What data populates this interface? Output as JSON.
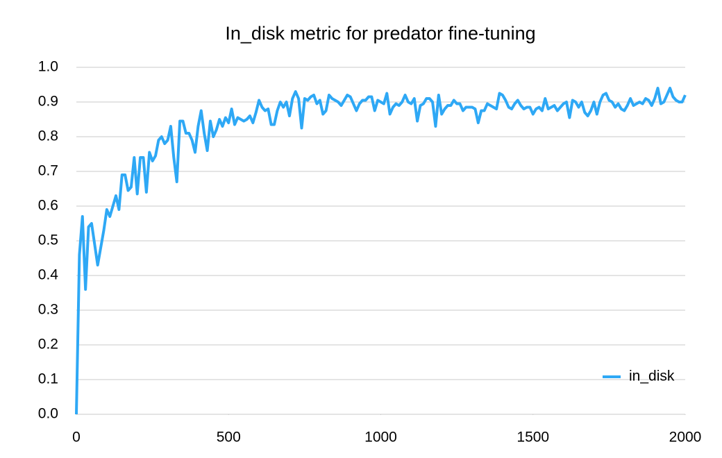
{
  "chart_data": {
    "type": "line",
    "title": "In_disk metric for predator fine-tuning",
    "x": [
      0,
      10,
      20,
      30,
      40,
      50,
      60,
      70,
      80,
      90,
      100,
      110,
      120,
      130,
      140,
      150,
      160,
      170,
      180,
      190,
      200,
      210,
      220,
      230,
      240,
      250,
      260,
      270,
      280,
      290,
      300,
      310,
      320,
      330,
      340,
      350,
      360,
      370,
      380,
      390,
      400,
      410,
      420,
      430,
      440,
      450,
      460,
      470,
      480,
      490,
      500,
      510,
      520,
      530,
      540,
      550,
      560,
      570,
      580,
      590,
      600,
      610,
      620,
      630,
      640,
      650,
      660,
      670,
      680,
      690,
      700,
      710,
      720,
      730,
      740,
      750,
      760,
      770,
      780,
      790,
      800,
      810,
      820,
      830,
      840,
      850,
      860,
      870,
      880,
      890,
      900,
      910,
      920,
      930,
      940,
      950,
      960,
      970,
      980,
      990,
      1000,
      1010,
      1020,
      1030,
      1040,
      1050,
      1060,
      1070,
      1080,
      1090,
      1100,
      1110,
      1120,
      1130,
      1140,
      1150,
      1160,
      1170,
      1180,
      1190,
      1200,
      1210,
      1220,
      1230,
      1240,
      1250,
      1260,
      1270,
      1280,
      1290,
      1300,
      1310,
      1320,
      1330,
      1340,
      1350,
      1360,
      1370,
      1380,
      1390,
      1400,
      1410,
      1420,
      1430,
      1440,
      1450,
      1460,
      1470,
      1480,
      1490,
      1500,
      1510,
      1520,
      1530,
      1540,
      1550,
      1560,
      1570,
      1580,
      1590,
      1600,
      1610,
      1620,
      1630,
      1640,
      1650,
      1660,
      1670,
      1680,
      1690,
      1700,
      1710,
      1720,
      1730,
      1740,
      1750,
      1760,
      1770,
      1780,
      1790,
      1800,
      1810,
      1820,
      1830,
      1840,
      1850,
      1860,
      1870,
      1880,
      1890,
      1900,
      1910,
      1920,
      1930,
      1940,
      1950,
      1960,
      1970,
      1980,
      1990,
      2000
    ],
    "series": [
      {
        "name": "in_disk",
        "color": "#2ea8f5",
        "values": [
          0.0,
          0.46,
          0.57,
          0.36,
          0.54,
          0.55,
          0.49,
          0.43,
          0.48,
          0.53,
          0.59,
          0.57,
          0.6,
          0.63,
          0.59,
          0.69,
          0.69,
          0.645,
          0.655,
          0.74,
          0.635,
          0.74,
          0.74,
          0.64,
          0.755,
          0.73,
          0.745,
          0.79,
          0.8,
          0.78,
          0.79,
          0.83,
          0.74,
          0.67,
          0.845,
          0.845,
          0.81,
          0.81,
          0.79,
          0.755,
          0.83,
          0.875,
          0.81,
          0.76,
          0.845,
          0.8,
          0.82,
          0.85,
          0.83,
          0.855,
          0.84,
          0.88,
          0.835,
          0.855,
          0.85,
          0.845,
          0.85,
          0.86,
          0.84,
          0.87,
          0.905,
          0.885,
          0.875,
          0.88,
          0.835,
          0.835,
          0.875,
          0.9,
          0.885,
          0.9,
          0.86,
          0.91,
          0.93,
          0.91,
          0.825,
          0.91,
          0.905,
          0.915,
          0.92,
          0.895,
          0.905,
          0.865,
          0.875,
          0.92,
          0.91,
          0.905,
          0.9,
          0.89,
          0.905,
          0.92,
          0.915,
          0.895,
          0.875,
          0.895,
          0.905,
          0.905,
          0.915,
          0.915,
          0.875,
          0.905,
          0.9,
          0.895,
          0.925,
          0.865,
          0.885,
          0.895,
          0.89,
          0.9,
          0.92,
          0.9,
          0.895,
          0.91,
          0.845,
          0.89,
          0.895,
          0.91,
          0.91,
          0.9,
          0.83,
          0.92,
          0.865,
          0.88,
          0.89,
          0.89,
          0.905,
          0.895,
          0.895,
          0.875,
          0.885,
          0.885,
          0.885,
          0.88,
          0.84,
          0.875,
          0.875,
          0.895,
          0.89,
          0.885,
          0.88,
          0.925,
          0.92,
          0.905,
          0.885,
          0.88,
          0.895,
          0.905,
          0.89,
          0.88,
          0.885,
          0.885,
          0.865,
          0.88,
          0.885,
          0.875,
          0.91,
          0.88,
          0.885,
          0.89,
          0.875,
          0.885,
          0.895,
          0.9,
          0.855,
          0.905,
          0.9,
          0.885,
          0.9,
          0.87,
          0.86,
          0.875,
          0.9,
          0.865,
          0.9,
          0.92,
          0.925,
          0.905,
          0.9,
          0.885,
          0.895,
          0.88,
          0.875,
          0.89,
          0.91,
          0.89,
          0.895,
          0.9,
          0.895,
          0.91,
          0.905,
          0.89,
          0.91,
          0.94,
          0.895,
          0.9,
          0.92,
          0.94,
          0.915,
          0.905,
          0.9,
          0.9,
          0.92
        ]
      }
    ],
    "xlim": [
      0,
      2000
    ],
    "xticks": [
      0,
      500,
      1000,
      1500,
      2000
    ],
    "ylim": [
      0,
      1
    ],
    "yticks": [
      {
        "value": 0,
        "label": "0.0"
      },
      0.1,
      0.2,
      0.3,
      0.4,
      0.5,
      0.6,
      0.7,
      0.8,
      0.9,
      {
        "value": 1,
        "label": "1.0"
      }
    ],
    "grid": true,
    "legend": "lower right"
  }
}
